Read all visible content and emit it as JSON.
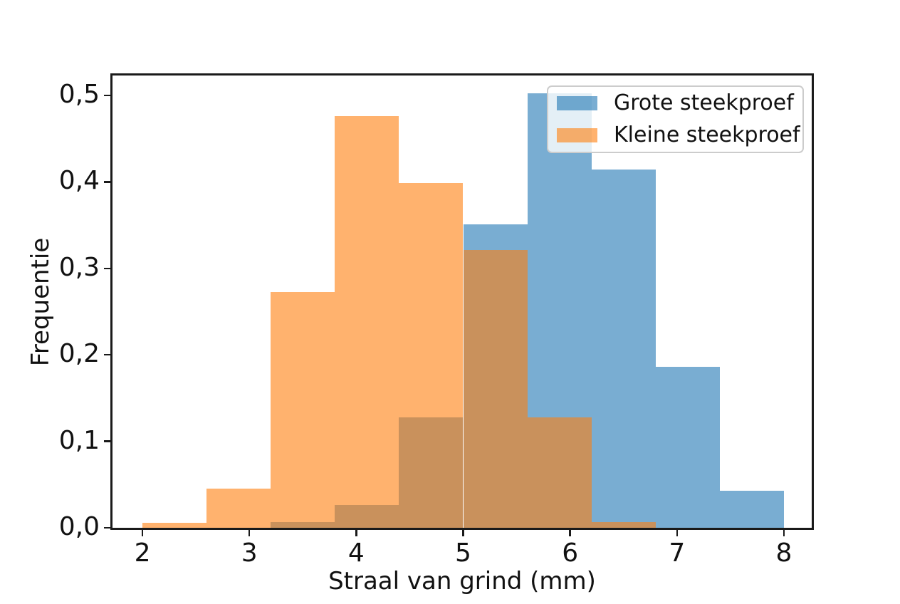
{
  "figure": {
    "xlabel": "Straal van grind (mm)",
    "ylabel": "Frequentie"
  },
  "chart_data": {
    "type": "bar",
    "subtype": "overlapping-density-histograms",
    "title": "",
    "xlabel": "Straal van grind (mm)",
    "ylabel": "Frequentie",
    "xlim": [
      1.72,
      8.26
    ],
    "ylim": [
      0,
      0.523
    ],
    "x_tick_values": [
      2,
      3,
      4,
      5,
      6,
      7,
      8
    ],
    "x_tick_labels": [
      "2",
      "3",
      "4",
      "5",
      "6",
      "7",
      "8"
    ],
    "y_tick_values": [
      0.0,
      0.1,
      0.2,
      0.3,
      0.4,
      0.5
    ],
    "y_tick_labels": [
      "0,0",
      "0,1",
      "0,2",
      "0,3",
      "0,4",
      "0,5"
    ],
    "grid": false,
    "legend_position": "upper right",
    "bin_width": 0.6,
    "series": [
      {
        "name": "Grote steekproef",
        "color": "#1f77b4",
        "alpha": 0.6,
        "bin_edges": [
          3.2,
          3.8,
          4.4,
          5.0,
          5.6,
          6.2,
          6.8,
          7.4,
          8.0
        ],
        "densities": [
          0.007,
          0.026,
          0.128,
          0.351,
          0.502,
          0.414,
          0.186,
          0.043
        ]
      },
      {
        "name": "Kleine steekproef",
        "color": "#ff7f0e",
        "alpha": 0.6,
        "bin_edges": [
          2.0,
          2.6,
          3.2,
          3.8,
          4.4,
          5.0,
          5.6,
          6.2,
          6.8
        ],
        "densities": [
          0.006,
          0.045,
          0.273,
          0.476,
          0.399,
          0.321,
          0.128,
          0.007
        ]
      }
    ]
  }
}
